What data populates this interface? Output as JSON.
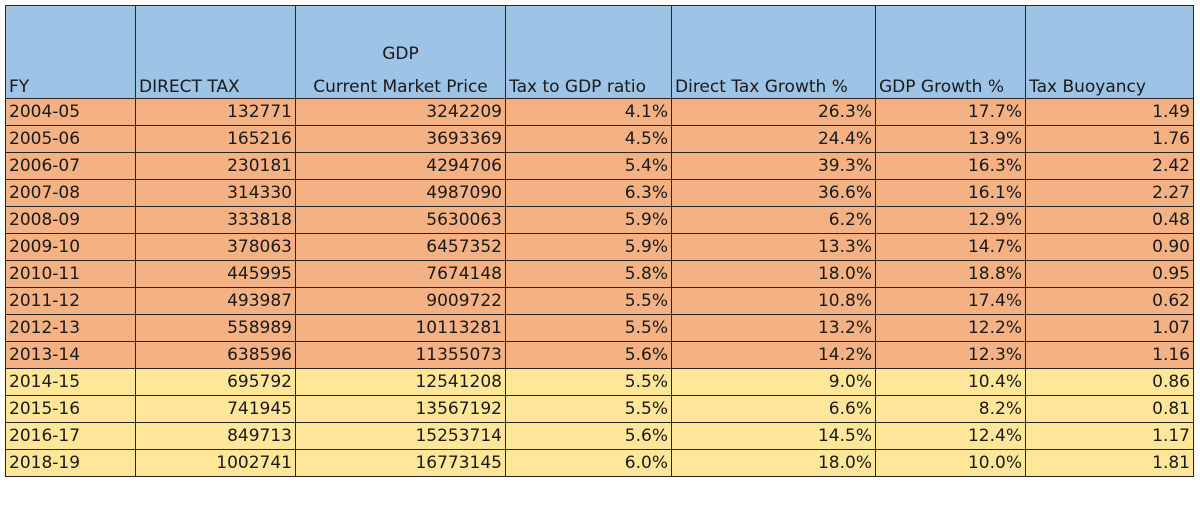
{
  "table": {
    "headers": {
      "fy": "FY",
      "direct_tax": "DIRECT TAX",
      "gdp_line1": "GDP",
      "gdp_line2": "Current Market Price",
      "tax_to_gdp": "Tax to GDP ratio",
      "direct_tax_growth": "Direct Tax Growth %",
      "gdp_growth": "GDP Growth %",
      "tax_buoyancy": "Tax Buoyancy"
    },
    "colors": {
      "header_bg": "#9dc3e6",
      "row_orange": "#f4b183",
      "row_yellow": "#ffe699"
    },
    "rows": [
      [
        "2004-05",
        "132771",
        "3242209",
        "4.1%",
        "26.3%",
        "17.7%",
        "1.49"
      ],
      [
        "2005-06",
        "165216",
        "3693369",
        "4.5%",
        "24.4%",
        "13.9%",
        "1.76"
      ],
      [
        "2006-07",
        "230181",
        "4294706",
        "5.4%",
        "39.3%",
        "16.3%",
        "2.42"
      ],
      [
        "2007-08",
        "314330",
        "4987090",
        "6.3%",
        "36.6%",
        "16.1%",
        "2.27"
      ],
      [
        "2008-09",
        "333818",
        "5630063",
        "5.9%",
        "6.2%",
        "12.9%",
        "0.48"
      ],
      [
        "2009-10",
        "378063",
        "6457352",
        "5.9%",
        "13.3%",
        "14.7%",
        "0.90"
      ],
      [
        "2010-11",
        "445995",
        "7674148",
        "5.8%",
        "18.0%",
        "18.8%",
        "0.95"
      ],
      [
        "2011-12",
        "493987",
        "9009722",
        "5.5%",
        "10.8%",
        "17.4%",
        "0.62"
      ],
      [
        "2012-13",
        "558989",
        "10113281",
        "5.5%",
        "13.2%",
        "12.2%",
        "1.07"
      ],
      [
        "2013-14",
        "638596",
        "11355073",
        "5.6%",
        "14.2%",
        "12.3%",
        "1.16"
      ],
      [
        "2014-15",
        "695792",
        "12541208",
        "5.5%",
        "9.0%",
        "10.4%",
        "0.86"
      ],
      [
        "2015-16",
        "741945",
        "13567192",
        "5.5%",
        "6.6%",
        "8.2%",
        "0.81"
      ],
      [
        "2016-17",
        "849713",
        "15253714",
        "5.6%",
        "14.5%",
        "12.4%",
        "1.17"
      ],
      [
        "2018-19",
        "1002741",
        "16773145",
        "6.0%",
        "18.0%",
        "10.0%",
        "1.81"
      ]
    ],
    "row_fill": [
      "orange",
      "orange",
      "orange",
      "orange",
      "orange",
      "orange",
      "orange",
      "orange",
      "orange",
      "orange",
      "yellow",
      "yellow",
      "yellow",
      "yellow"
    ]
  }
}
